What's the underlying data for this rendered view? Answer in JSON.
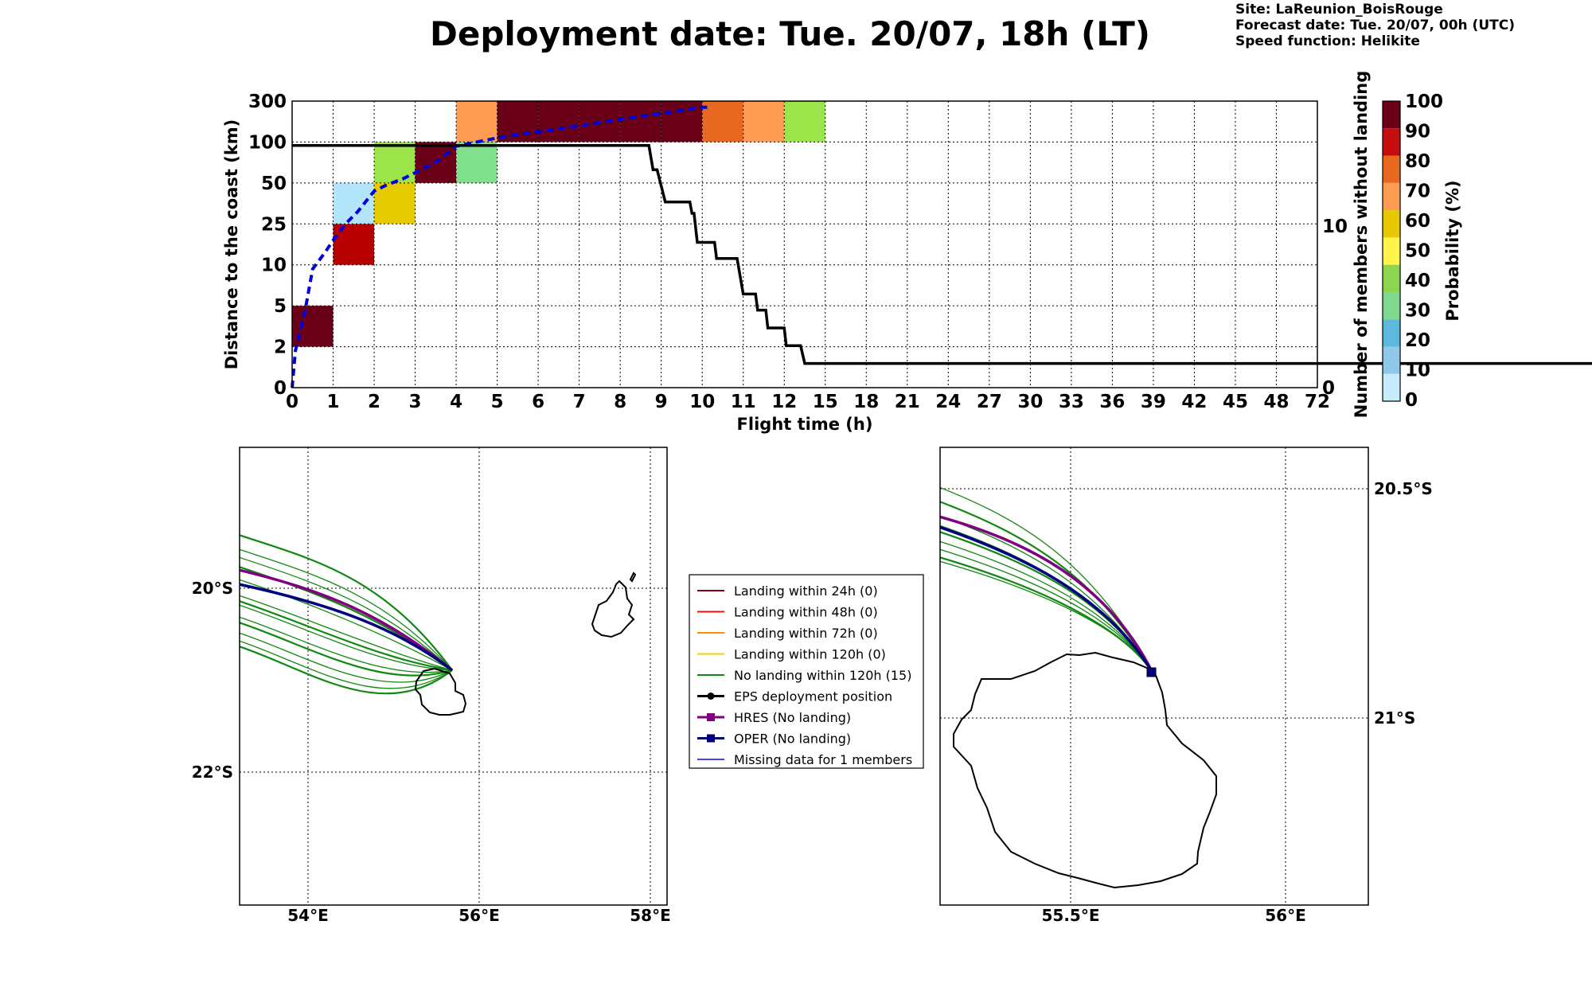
{
  "header": {
    "title": "Deployment date: Tue. 20/07, 18h (LT)",
    "site": "Site: LaReunion_BoisRouge",
    "forecast": "Forecast date: Tue. 20/07, 00h (UTC)",
    "speed": "Speed function: Helikite"
  },
  "chart_data": [
    {
      "type": "heatmap",
      "xlabel": "Flight time (h)",
      "ylabel": "Distance to the coast (km)",
      "ylabel_right": "Number of members without landing",
      "colorbar_label": "Probability (%)",
      "x_ticks": [
        "0",
        "1",
        "2",
        "3",
        "4",
        "5",
        "6",
        "7",
        "8",
        "9",
        "10",
        "11",
        "12",
        "15",
        "18",
        "21",
        "24",
        "27",
        "30",
        "33",
        "36",
        "39",
        "42",
        "45",
        "48",
        "72"
      ],
      "y_ticks": [
        "0",
        "2",
        "5",
        "10",
        "25",
        "50",
        "100",
        "300"
      ],
      "right_ticks": [
        "0",
        "10"
      ],
      "colorbar_ticks": [
        "0",
        "10",
        "20",
        "30",
        "40",
        "50",
        "60",
        "70",
        "80",
        "90",
        "100"
      ],
      "colorbar_colors": [
        "#c6ecfb",
        "#8fc8e8",
        "#5cb8dc",
        "#7fd98f",
        "#8bd64e",
        "#fff44a",
        "#e8c800",
        "#fd9c52",
        "#e8681f",
        "#c50d0d",
        "#6b0019"
      ],
      "cells": [
        {
          "x": 0,
          "y": 1,
          "color": "#6b0019"
        },
        {
          "x": 1,
          "y": 3,
          "color": "#b70000"
        },
        {
          "x": 1,
          "y": 4,
          "color": "#b3e5fb"
        },
        {
          "x": 2,
          "y": 4,
          "color": "#e6cb00"
        },
        {
          "x": 2,
          "y": 5,
          "color": "#9be449"
        },
        {
          "x": 3,
          "y": 5,
          "color": "#6b0019"
        },
        {
          "x": 4,
          "y": 5,
          "color": "#80e08e"
        },
        {
          "x": 4,
          "y": 6,
          "color": "#fd9c52"
        },
        {
          "x": 5,
          "y": 6,
          "color": "#6b0019"
        },
        {
          "x": 6,
          "y": 6,
          "color": "#6b0019"
        },
        {
          "x": 7,
          "y": 6,
          "color": "#6b0019"
        },
        {
          "x": 8,
          "y": 6,
          "color": "#6b0019"
        },
        {
          "x": 9,
          "y": 6,
          "color": "#6b0019"
        },
        {
          "x": 10,
          "y": 6,
          "color": "#e8681f"
        },
        {
          "x": 11,
          "y": 6,
          "color": "#fd9c52"
        },
        {
          "x": 12,
          "y": 6,
          "color": "#9be449"
        }
      ],
      "series": [
        {
          "name": "",
          "axis": "left",
          "style": "dashed",
          "color": "#0000dd",
          "points": [
            [
              0,
              0.0
            ],
            [
              0.08,
              0.9
            ],
            [
              0.2,
              1.4
            ],
            [
              0.3,
              1.8
            ],
            [
              0.5,
              2.9
            ],
            [
              0.8,
              3.3
            ],
            [
              1.0,
              3.6
            ],
            [
              1.3,
              4.0
            ],
            [
              1.6,
              4.3
            ],
            [
              1.8,
              4.55
            ],
            [
              2.0,
              4.8
            ],
            [
              2.3,
              4.95
            ],
            [
              2.7,
              5.1
            ],
            [
              3.0,
              5.25
            ],
            [
              3.5,
              5.5
            ],
            [
              4.0,
              5.9
            ],
            [
              4.5,
              6.0
            ],
            [
              5.0,
              6.1
            ],
            [
              6.0,
              6.25
            ],
            [
              7.0,
              6.4
            ],
            [
              8.0,
              6.55
            ],
            [
              9.0,
              6.7
            ],
            [
              10.0,
              6.85
            ],
            [
              10.15,
              6.85
            ]
          ]
        },
        {
          "name": "",
          "axis": "right",
          "style": "step",
          "color": "#000000",
          "points": [
            [
              0,
              15
            ],
            [
              8.7,
              15
            ],
            [
              8.8,
              13.5
            ],
            [
              8.9,
              13.5
            ],
            [
              9.1,
              11.5
            ],
            [
              9.7,
              11.5
            ],
            [
              9.75,
              10.8
            ],
            [
              9.8,
              10.8
            ],
            [
              9.88,
              9
            ],
            [
              10.3,
              9
            ],
            [
              10.35,
              8
            ],
            [
              10.85,
              8
            ],
            [
              11.0,
              5.8
            ],
            [
              11.3,
              5.8
            ],
            [
              11.35,
              4.8
            ],
            [
              11.55,
              4.8
            ],
            [
              11.6,
              3.7
            ],
            [
              12.0,
              3.7
            ],
            [
              12.05,
              2.6
            ],
            [
              12.4,
              2.6
            ],
            [
              12.5,
              1.5
            ],
            [
              72,
              1.5
            ]
          ]
        }
      ]
    },
    {
      "type": "map",
      "x_ticks": [
        "54°E",
        "56°E",
        "58°E"
      ],
      "y_ticks": [
        "20°S",
        "22°S"
      ],
      "legend": [
        {
          "label": "Landing within 24h (0)",
          "color": "#8b0000"
        },
        {
          "label": "Landing within 48h (0)",
          "color": "#ee1111"
        },
        {
          "label": "Landing within 72h (0)",
          "color": "#ff8c00"
        },
        {
          "label": "Landing within 120h (0)",
          "color": "#f2d000"
        },
        {
          "label": "No landing within 120h (15)",
          "color": "#118811"
        },
        {
          "label": "EPS deployment position",
          "color": "#000000"
        },
        {
          "label": "HRES (No landing)",
          "color": "#800080"
        },
        {
          "label": "OPER (No landing)",
          "color": "#000080"
        },
        {
          "label": "Missing data for 1 members",
          "color": "#4444ff"
        }
      ]
    },
    {
      "type": "map",
      "x_ticks": [
        "55.5°E",
        "56°E"
      ],
      "y_ticks": [
        "20.5°S",
        "21°S"
      ]
    }
  ]
}
